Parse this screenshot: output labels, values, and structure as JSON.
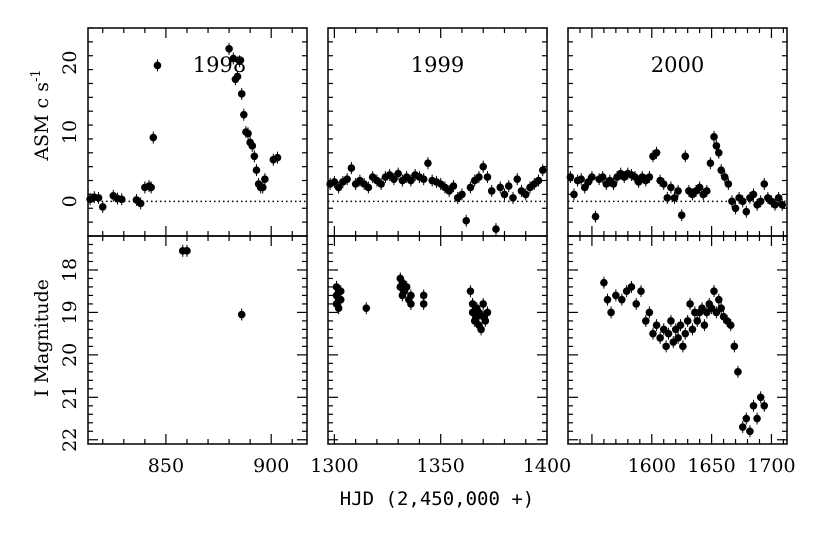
{
  "chart_data": {
    "type": "scatter",
    "xlabel": "HJD (2,450,000 +)",
    "panels": [
      {
        "year": "1998",
        "xlim": [
          813,
          917
        ],
        "xticks": [
          850,
          900
        ],
        "asm": {
          "ylabel": "ASM c s",
          "ylabel_sup": "-1",
          "ylim": [
            -5,
            25
          ],
          "yticks": [
            0,
            10,
            20
          ],
          "points": [
            [
              814,
              0.3
            ],
            [
              816,
              0.6
            ],
            [
              818,
              0.5
            ],
            [
              820,
              -0.8
            ],
            [
              825,
              0.8
            ],
            [
              827,
              0.4
            ],
            [
              829,
              0.3
            ],
            [
              836,
              0.2
            ],
            [
              838,
              -0.3
            ],
            [
              840,
              2.0
            ],
            [
              842,
              2.2
            ],
            [
              843,
              2.0
            ],
            [
              844,
              9.2
            ],
            [
              846,
              19.6
            ],
            [
              880,
              22.0
            ],
            [
              882,
              20.6
            ],
            [
              883,
              17.6
            ],
            [
              884,
              18.0
            ],
            [
              885,
              20.2
            ],
            [
              886,
              15.5
            ],
            [
              887,
              12.5
            ],
            [
              888,
              10.0
            ],
            [
              889,
              9.8
            ],
            [
              890,
              8.5
            ],
            [
              891,
              8.0
            ],
            [
              892,
              6.5
            ],
            [
              893,
              4.5
            ],
            [
              894,
              2.5
            ],
            [
              895,
              2.0
            ],
            [
              896,
              2.0
            ],
            [
              897,
              3.2
            ],
            [
              901,
              6.0
            ],
            [
              903,
              6.3
            ]
          ]
        },
        "imag": {
          "ylabel": "I Magnitude",
          "ylim": [
            22.1,
            17.2
          ],
          "yticks": [
            18,
            19,
            20,
            21,
            22
          ],
          "points": [
            [
              858,
              17.55
            ],
            [
              860,
              17.55
            ],
            [
              886,
              19.05
            ]
          ]
        }
      },
      {
        "year": "1999",
        "xlim": [
          1297,
          1400
        ],
        "xticks": [
          1300,
          1350,
          1400
        ],
        "asm": {
          "ylim": [
            -5,
            25
          ],
          "points": [
            [
              1298,
              2.5
            ],
            [
              1300,
              2.8
            ],
            [
              1302,
              2.0
            ],
            [
              1304,
              2.8
            ],
            [
              1306,
              3.2
            ],
            [
              1308,
              4.8
            ],
            [
              1310,
              2.5
            ],
            [
              1312,
              3.0
            ],
            [
              1314,
              2.5
            ],
            [
              1316,
              2.0
            ],
            [
              1318,
              3.5
            ],
            [
              1320,
              3.0
            ],
            [
              1322,
              2.5
            ],
            [
              1324,
              3.5
            ],
            [
              1326,
              3.8
            ],
            [
              1328,
              3.2
            ],
            [
              1330,
              4.0
            ],
            [
              1332,
              3.0
            ],
            [
              1334,
              3.5
            ],
            [
              1336,
              3.0
            ],
            [
              1338,
              3.8
            ],
            [
              1340,
              3.5
            ],
            [
              1342,
              3.2
            ],
            [
              1344,
              5.5
            ],
            [
              1346,
              3.0
            ],
            [
              1348,
              2.8
            ],
            [
              1350,
              2.5
            ],
            [
              1352,
              2.0
            ],
            [
              1354,
              1.5
            ],
            [
              1356,
              2.2
            ],
            [
              1358,
              0.5
            ],
            [
              1360,
              1.0
            ],
            [
              1362,
              -2.8
            ],
            [
              1364,
              2.0
            ],
            [
              1366,
              3.0
            ],
            [
              1368,
              3.5
            ],
            [
              1370,
              5.0
            ],
            [
              1372,
              3.5
            ],
            [
              1374,
              1.5
            ],
            [
              1376,
              -4.0
            ],
            [
              1378,
              2.0
            ],
            [
              1380,
              1.0
            ],
            [
              1382,
              2.2
            ],
            [
              1384,
              0.5
            ],
            [
              1386,
              3.2
            ],
            [
              1388,
              1.5
            ],
            [
              1390,
              1.0
            ],
            [
              1392,
              2.0
            ],
            [
              1394,
              2.5
            ],
            [
              1396,
              3.0
            ],
            [
              1398,
              4.5
            ]
          ]
        },
        "imag": {
          "ylim": [
            22.1,
            17.2
          ],
          "points": [
            [
              1301,
              18.4
            ],
            [
              1301,
              18.6
            ],
            [
              1301,
              18.8
            ],
            [
              1302,
              18.5
            ],
            [
              1302,
              18.7
            ],
            [
              1302,
              18.9
            ],
            [
              1303,
              18.5
            ],
            [
              1303,
              18.7
            ],
            [
              1315,
              18.9
            ],
            [
              1331,
              18.2
            ],
            [
              1331,
              18.4
            ],
            [
              1332,
              18.3
            ],
            [
              1332,
              18.6
            ],
            [
              1333,
              18.5
            ],
            [
              1334,
              18.4
            ],
            [
              1335,
              18.7
            ],
            [
              1336,
              18.6
            ],
            [
              1336,
              18.8
            ],
            [
              1342,
              18.6
            ],
            [
              1342,
              18.8
            ],
            [
              1364,
              18.5
            ],
            [
              1365,
              18.8
            ],
            [
              1365,
              19.0
            ],
            [
              1366,
              19.2
            ],
            [
              1367,
              18.9
            ],
            [
              1367,
              19.1
            ],
            [
              1368,
              19.3
            ],
            [
              1368,
              19.0
            ],
            [
              1369,
              19.4
            ],
            [
              1370,
              19.1
            ],
            [
              1370,
              18.8
            ],
            [
              1371,
              19.2
            ],
            [
              1372,
              19.0
            ]
          ]
        }
      },
      {
        "year": "2000",
        "xlim": [
          1530,
          1713
        ],
        "xticks": [
          1600,
          1650,
          1700
        ],
        "asm": {
          "ylim": [
            -5,
            25
          ],
          "points": [
            [
              1532,
              3.5
            ],
            [
              1535,
              1.0
            ],
            [
              1538,
              3.0
            ],
            [
              1541,
              3.2
            ],
            [
              1544,
              2.0
            ],
            [
              1547,
              2.8
            ],
            [
              1550,
              3.5
            ],
            [
              1553,
              -2.2
            ],
            [
              1556,
              3.2
            ],
            [
              1559,
              3.5
            ],
            [
              1562,
              2.5
            ],
            [
              1565,
              3.0
            ],
            [
              1568,
              2.5
            ],
            [
              1571,
              3.5
            ],
            [
              1574,
              4.0
            ],
            [
              1577,
              3.5
            ],
            [
              1580,
              4.0
            ],
            [
              1583,
              3.8
            ],
            [
              1586,
              3.5
            ],
            [
              1589,
              2.8
            ],
            [
              1592,
              3.5
            ],
            [
              1595,
              3.0
            ],
            [
              1598,
              3.5
            ],
            [
              1601,
              6.5
            ],
            [
              1604,
              7.0
            ],
            [
              1607,
              3.0
            ],
            [
              1610,
              2.5
            ],
            [
              1613,
              0.5
            ],
            [
              1616,
              2.0
            ],
            [
              1619,
              0.5
            ],
            [
              1622,
              1.5
            ],
            [
              1625,
              -2.0
            ],
            [
              1628,
              6.5
            ],
            [
              1631,
              1.5
            ],
            [
              1634,
              1.0
            ],
            [
              1637,
              1.5
            ],
            [
              1640,
              2.0
            ],
            [
              1643,
              1.0
            ],
            [
              1646,
              1.5
            ],
            [
              1649,
              5.5
            ],
            [
              1652,
              9.3
            ],
            [
              1654,
              8.0
            ],
            [
              1656,
              7.0
            ],
            [
              1658,
              4.5
            ],
            [
              1661,
              3.5
            ],
            [
              1664,
              2.5
            ],
            [
              1667,
              0.0
            ],
            [
              1670,
              -1.0
            ],
            [
              1673,
              0.5
            ],
            [
              1676,
              0.0
            ],
            [
              1679,
              -1.5
            ],
            [
              1682,
              0.5
            ],
            [
              1685,
              1.0
            ],
            [
              1688,
              -0.5
            ],
            [
              1691,
              0.0
            ],
            [
              1694,
              2.5
            ],
            [
              1697,
              0.5
            ],
            [
              1700,
              0.0
            ],
            [
              1703,
              -0.5
            ],
            [
              1706,
              0.5
            ],
            [
              1709,
              -0.5
            ]
          ]
        },
        "imag": {
          "ylim": [
            22.1,
            17.2
          ],
          "points": [
            [
              1560,
              18.3
            ],
            [
              1563,
              18.7
            ],
            [
              1566,
              19.0
            ],
            [
              1570,
              18.6
            ],
            [
              1575,
              18.7
            ],
            [
              1579,
              18.5
            ],
            [
              1583,
              18.4
            ],
            [
              1587,
              18.8
            ],
            [
              1591,
              18.5
            ],
            [
              1595,
              19.2
            ],
            [
              1598,
              19.0
            ],
            [
              1601,
              19.5
            ],
            [
              1604,
              19.3
            ],
            [
              1607,
              19.6
            ],
            [
              1610,
              19.4
            ],
            [
              1612,
              19.8
            ],
            [
              1614,
              19.5
            ],
            [
              1616,
              19.2
            ],
            [
              1618,
              19.7
            ],
            [
              1620,
              19.4
            ],
            [
              1622,
              19.6
            ],
            [
              1624,
              19.3
            ],
            [
              1626,
              19.8
            ],
            [
              1628,
              19.5
            ],
            [
              1630,
              19.2
            ],
            [
              1632,
              18.8
            ],
            [
              1634,
              19.4
            ],
            [
              1636,
              19.0
            ],
            [
              1638,
              19.2
            ],
            [
              1640,
              19.0
            ],
            [
              1642,
              18.9
            ],
            [
              1644,
              19.3
            ],
            [
              1646,
              19.0
            ],
            [
              1648,
              18.8
            ],
            [
              1650,
              18.9
            ],
            [
              1652,
              18.5
            ],
            [
              1654,
              19.0
            ],
            [
              1656,
              18.7
            ],
            [
              1658,
              18.9
            ],
            [
              1660,
              19.1
            ],
            [
              1663,
              19.2
            ],
            [
              1666,
              19.3
            ],
            [
              1669,
              19.8
            ],
            [
              1672,
              20.4
            ],
            [
              1676,
              21.7
            ],
            [
              1679,
              21.5
            ],
            [
              1682,
              21.8
            ],
            [
              1685,
              21.2
            ],
            [
              1688,
              21.5
            ],
            [
              1691,
              21.0
            ],
            [
              1694,
              21.2
            ]
          ]
        }
      }
    ]
  }
}
